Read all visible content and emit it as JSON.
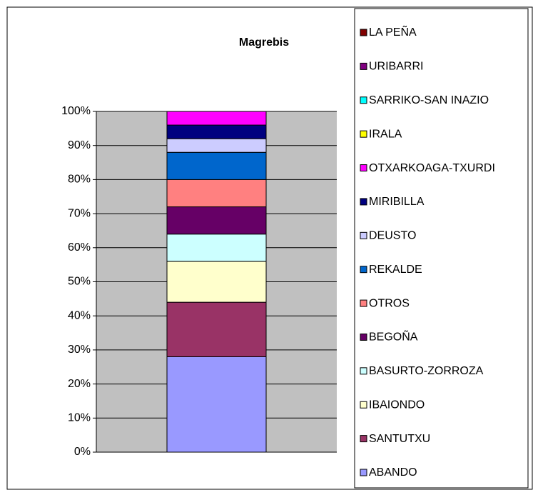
{
  "chart_data": {
    "type": "bar",
    "stacked": true,
    "title": "Magrebis",
    "categories": [
      null
    ],
    "series": [
      {
        "name": "ABANDO",
        "color": "#9999ff",
        "values": [
          28
        ]
      },
      {
        "name": "SANTUTXU",
        "color": "#993366",
        "values": [
          16
        ]
      },
      {
        "name": "IBAIONDO",
        "color": "#ffffcc",
        "values": [
          12
        ]
      },
      {
        "name": "BASURTO-ZORROZA",
        "color": "#ccffff",
        "values": [
          8
        ]
      },
      {
        "name": "BEGOÑA",
        "color": "#660066",
        "values": [
          8
        ]
      },
      {
        "name": "OTROS",
        "color": "#ff8080",
        "values": [
          8
        ]
      },
      {
        "name": "REKALDE",
        "color": "#0066cc",
        "values": [
          8
        ]
      },
      {
        "name": "DEUSTO",
        "color": "#ccccff",
        "values": [
          4
        ]
      },
      {
        "name": "MIRIBILLA",
        "color": "#000080",
        "values": [
          4
        ]
      },
      {
        "name": "OTXARKOAGA-TXURDI",
        "color": "#ff00ff",
        "values": [
          4
        ]
      },
      {
        "name": "IRALA",
        "color": "#ffff00",
        "values": [
          0
        ]
      },
      {
        "name": "SARRIKO-SAN INAZIO",
        "color": "#00ffff",
        "values": [
          0
        ]
      },
      {
        "name": "URIBARRI",
        "color": "#800080",
        "values": [
          0
        ]
      },
      {
        "name": "LA PEÑA",
        "color": "#800000",
        "values": [
          0
        ]
      }
    ],
    "ylim": [
      0,
      100
    ],
    "yticks": [
      {
        "value": 0,
        "label": "0%"
      },
      {
        "value": 10,
        "label": "10%"
      },
      {
        "value": 20,
        "label": "20%"
      },
      {
        "value": 30,
        "label": "30%"
      },
      {
        "value": 40,
        "label": "40%"
      },
      {
        "value": 50,
        "label": "50%"
      },
      {
        "value": 60,
        "label": "60%"
      },
      {
        "value": 70,
        "label": "70%"
      },
      {
        "value": 80,
        "label": "80%"
      },
      {
        "value": 90,
        "label": "90%"
      },
      {
        "value": 100,
        "label": "100%"
      }
    ],
    "grid": true,
    "legend": "right"
  }
}
